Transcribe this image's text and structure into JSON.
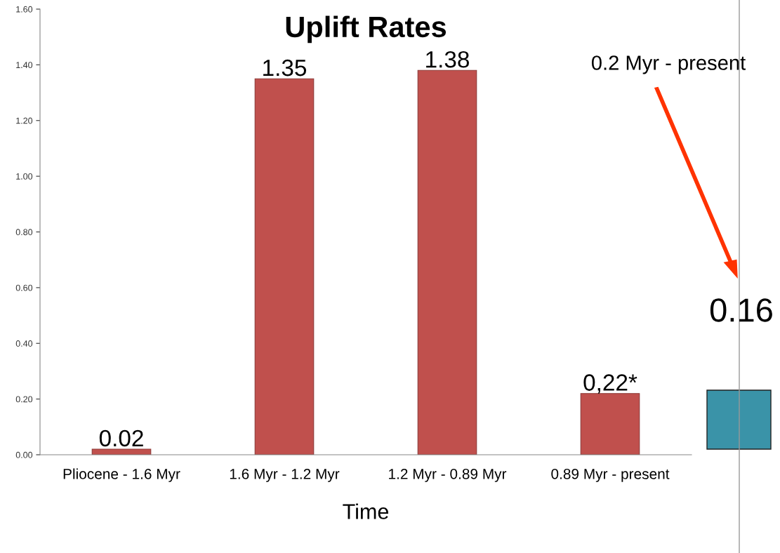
{
  "chart_data": {
    "type": "bar",
    "title": "Uplift Rates",
    "xlabel": "Time",
    "categories": [
      "Pliocene - 1.6 Myr",
      "1.6 Myr - 1.2 Myr",
      "1.2 Myr - 0.89 Myr",
      "0.89 Myr - present"
    ],
    "values": [
      0.02,
      1.35,
      1.38,
      0.22
    ],
    "color": "#c0504d",
    "value_labels": [
      "0.02",
      "1.35",
      "1.38",
      "0,22*"
    ],
    "ylim": [
      0,
      1.6
    ],
    "yticks": [
      {
        "value": 0,
        "label": "0.00"
      },
      {
        "value": 0.2,
        "label": "0.20"
      },
      {
        "value": 0.4,
        "label": "0.40"
      },
      {
        "value": 0.6,
        "label": "0.60"
      },
      {
        "value": 0.8,
        "label": "0.80"
      },
      {
        "value": 1.0,
        "label": "1.00"
      },
      {
        "value": 1.2,
        "label": "1.20"
      },
      {
        "value": 1.4,
        "label": "1.40"
      },
      {
        "value": 1.6,
        "label": "1.60"
      }
    ],
    "grid": false,
    "legend": false,
    "annotations": [
      "0.2 Myr - present",
      "0.16"
    ]
  }
}
